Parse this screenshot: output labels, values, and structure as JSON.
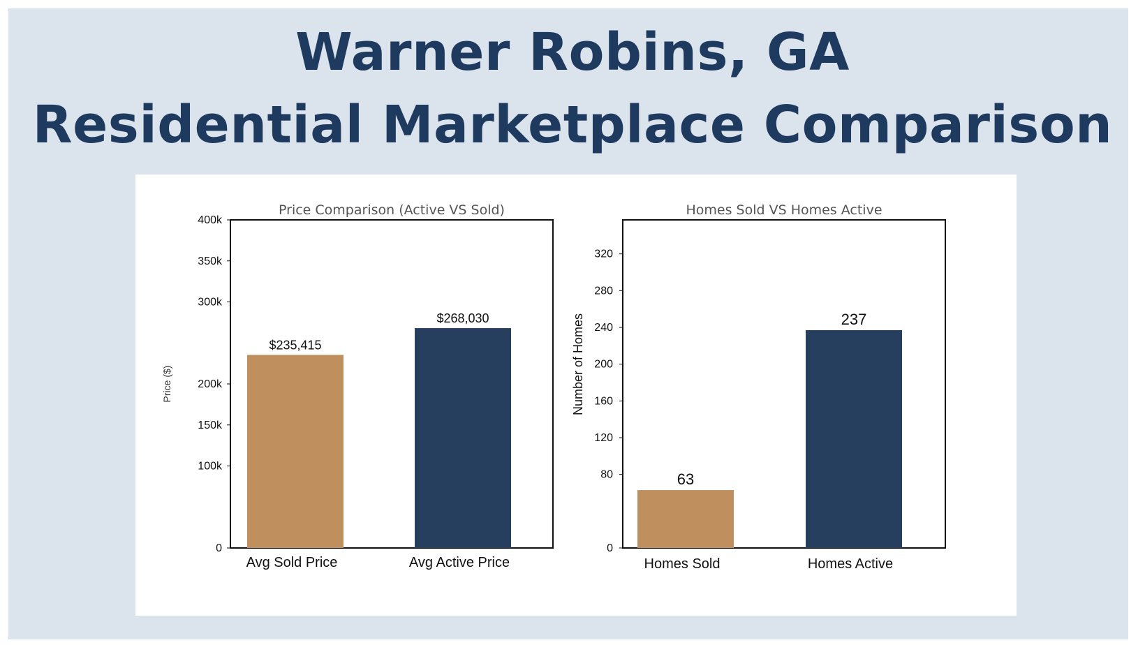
{
  "header": {
    "title_line1": "Warner Robins, GA",
    "title_line2": "Residential Marketplace Comparison"
  },
  "colors": {
    "background": "#dbe3ec",
    "title": "#1f3a5f",
    "sold": "#c08f5e",
    "active": "#263f5f"
  },
  "chart_data": [
    {
      "type": "bar",
      "title": "Price Comparison (Active VS Sold)",
      "xlabel": "",
      "ylabel": "Price ($)",
      "categories": [
        "Avg Sold Price",
        "Avg Active Price"
      ],
      "values": [
        235415,
        268030
      ],
      "data_labels": [
        "$235,415",
        "$268,030"
      ],
      "yticks": [
        {
          "value": 0,
          "label": "0"
        },
        {
          "value": 100000,
          "label": "100k"
        },
        {
          "value": 150000,
          "label": "150k"
        },
        {
          "value": 200000,
          "label": "200k"
        },
        {
          "value": 300000,
          "label": "300k"
        },
        {
          "value": 350000,
          "label": "350k"
        },
        {
          "value": 400000,
          "label": "400k"
        }
      ],
      "ylim": [
        0,
        400000
      ],
      "grid": false,
      "legend": "none"
    },
    {
      "type": "bar",
      "title": "Homes Sold VS Homes Active",
      "xlabel": "",
      "ylabel": "Number of Homes",
      "categories": [
        "Homes Sold",
        "Homes Active"
      ],
      "values": [
        63,
        237
      ],
      "data_labels": [
        "63",
        "237"
      ],
      "yticks": [
        {
          "value": 0,
          "label": "0"
        },
        {
          "value": 80,
          "label": "80"
        },
        {
          "value": 120,
          "label": "120"
        },
        {
          "value": 160,
          "label": "160"
        },
        {
          "value": 200,
          "label": "200"
        },
        {
          "value": 240,
          "label": "240"
        },
        {
          "value": 280,
          "label": "280"
        },
        {
          "value": 320,
          "label": "320"
        }
      ],
      "ylim": [
        0,
        357
      ],
      "grid": false,
      "legend": "none"
    }
  ]
}
